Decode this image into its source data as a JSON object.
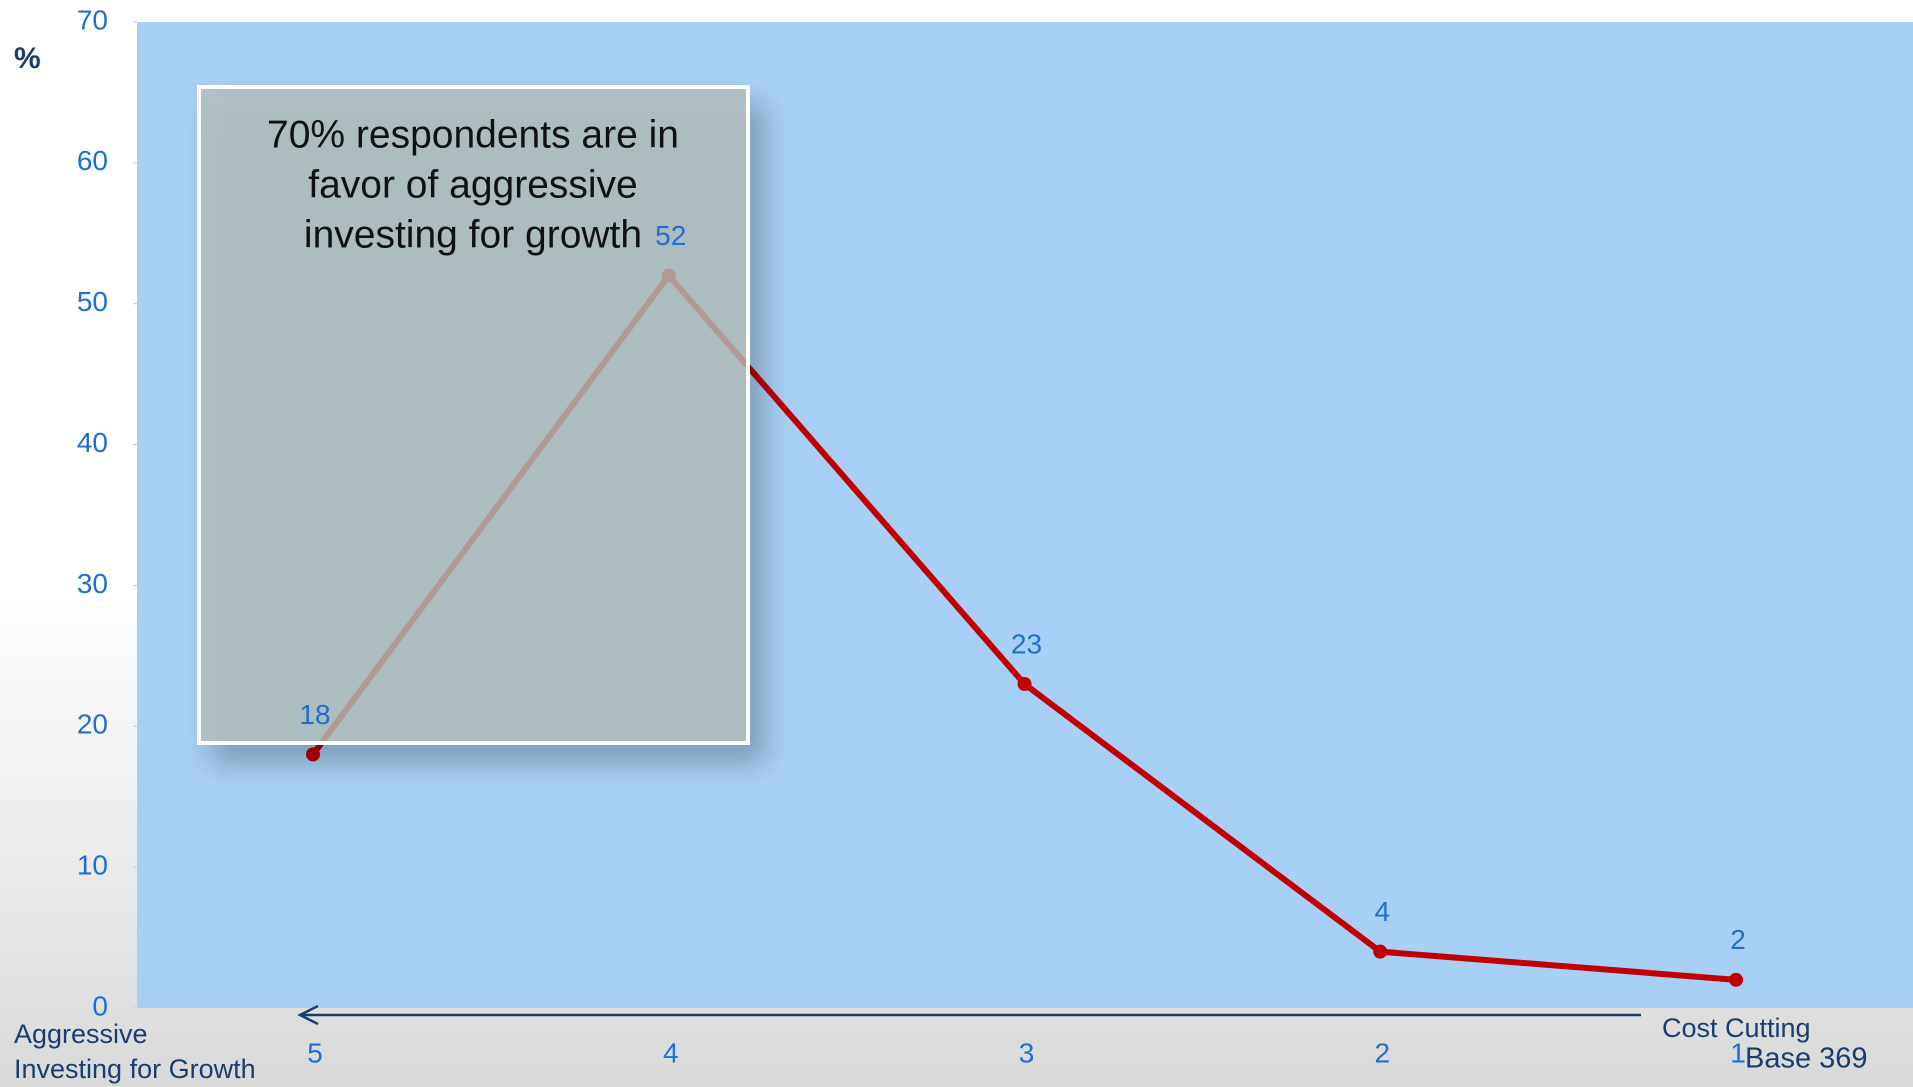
{
  "chart_data": {
    "type": "line",
    "y_label": "%",
    "categories": [
      "5",
      "4",
      "3",
      "2",
      "1"
    ],
    "values": [
      18,
      52,
      23,
      4,
      2
    ],
    "color": "#c00000",
    "ylim": [
      0,
      70
    ],
    "yticks": [
      0,
      10,
      20,
      30,
      40,
      50,
      60,
      70
    ],
    "annotation": [
      "70% respondents are in",
      "favor of aggressive",
      "investing for growth"
    ],
    "left_label": [
      "Aggressive",
      "Investing for Growth"
    ],
    "right_label": "Cost Cutting",
    "base_note": "Base 369"
  }
}
